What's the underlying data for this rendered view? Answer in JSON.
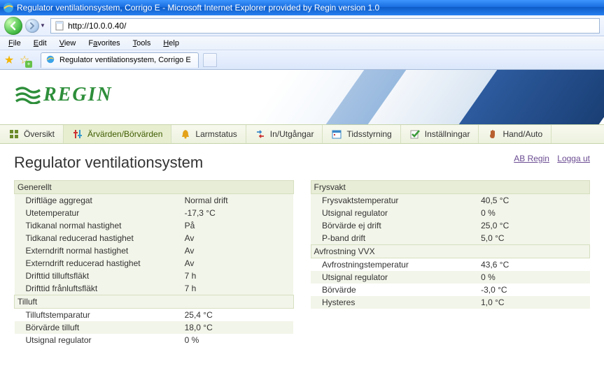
{
  "window": {
    "title": "Regulator ventilationsystem, Corrigo E - Microsoft Internet Explorer provided by Regin version 1.0",
    "address": "http://10.0.0.40/",
    "tab_label": "Regulator ventilationsystem, Corrigo E"
  },
  "menu": {
    "file": "File",
    "edit": "Edit",
    "view": "View",
    "favorites": "Favorites",
    "tools": "Tools",
    "help": "Help"
  },
  "logo_text": "REGIN",
  "colors": {
    "brand_green": "#2d8e3a",
    "link_value": "#3b5db0",
    "link_top": "#6b4c92",
    "row_alt_bg": "#f2f5e9",
    "section_bg": "#e8edd7",
    "section_border": "#d6dfc0"
  },
  "nav": [
    {
      "key": "oversikt",
      "label": "Översikt",
      "icon": "grid-icon",
      "icon_color": "#6b8b2a"
    },
    {
      "key": "arvarden",
      "label": "Ärvärden/Börvärden",
      "icon": "sliders-icon",
      "icon_color": "#2d6fc9",
      "active": true
    },
    {
      "key": "larm",
      "label": "Larmstatus",
      "icon": "bell-icon",
      "icon_color": "#e3a21a"
    },
    {
      "key": "io",
      "label": "In/Utgångar",
      "icon": "io-icon",
      "icon_color": "#3b88c9"
    },
    {
      "key": "tids",
      "label": "Tidsstyrning",
      "icon": "calendar-icon",
      "icon_color": "#3b88c9"
    },
    {
      "key": "inst",
      "label": "Inställningar",
      "icon": "check-icon",
      "icon_color": "#3a9a3a"
    },
    {
      "key": "hand",
      "label": "Hand/Auto",
      "icon": "hand-icon",
      "icon_color": "#b86030"
    }
  ],
  "page_title": "Regulator ventilationsystem",
  "top_links": {
    "ab": "AB  Regin",
    "logout": "Logga  ut"
  },
  "left": [
    {
      "type": "section",
      "label": "Generellt"
    },
    {
      "label": "Driftläge aggregat",
      "value": "Normal drift"
    },
    {
      "label": "Utetemperatur",
      "value": "-17,3 °C"
    },
    {
      "label": "Tidkanal normal hastighet",
      "value": "På"
    },
    {
      "label": "Tidkanal reducerad hastighet",
      "value": "Av"
    },
    {
      "label": "Externdrift normal hastighet",
      "value": "Av"
    },
    {
      "label": "Externdrift reducerad hastighet",
      "value": "Av"
    },
    {
      "label": "Drifttid tilluftsfläkt",
      "value": "7 h"
    },
    {
      "label": "Drifttid frånluftsfläkt",
      "value": "7 h"
    },
    {
      "type": "section",
      "label": "Tilluft"
    },
    {
      "label": "Tilluftstemparatur",
      "value": "25,4 °C"
    },
    {
      "label": "Börvärde tilluft",
      "value": "18,0 °C",
      "link": true
    },
    {
      "label": "Utsignal regulator",
      "value": "0 %"
    }
  ],
  "right": [
    {
      "type": "section",
      "label": "Frysvakt"
    },
    {
      "label": "Frysvaktstemperatur",
      "value": "40,5 °C"
    },
    {
      "label": "Utsignal regulator",
      "value": "0 %"
    },
    {
      "label": "Börvärde ej drift",
      "value": "25,0 °C",
      "link": true
    },
    {
      "label": "P-band drift",
      "value": "5,0 °C",
      "link": true
    },
    {
      "type": "section",
      "label": "Avfrostning VVX"
    },
    {
      "label": "Avfrostningstemperatur",
      "value": "43,6 °C"
    },
    {
      "label": "Utsignal regulator",
      "value": "0 %"
    },
    {
      "label": "Börvärde",
      "value": "-3,0 °C",
      "link": true
    },
    {
      "label": "Hysteres",
      "value": "1,0 °C",
      "link": true
    }
  ]
}
